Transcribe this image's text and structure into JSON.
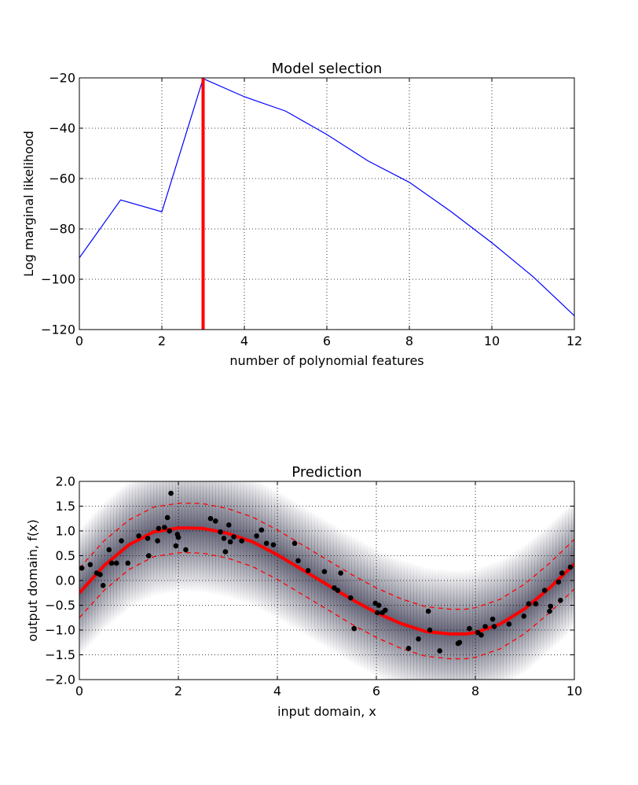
{
  "chart_data": [
    {
      "type": "line",
      "title": "Model selection",
      "xlabel": "number of polynomial features",
      "ylabel": "Log marginal likelihood",
      "xlim": [
        0,
        12
      ],
      "ylim": [
        -120,
        -20
      ],
      "xticks": [
        "0",
        "2",
        "4",
        "6",
        "8",
        "10",
        "12"
      ],
      "yticks": [
        "−120",
        "−100",
        "−80",
        "−60",
        "−40",
        "−20"
      ],
      "grid": true,
      "series": [
        {
          "color": "#0000ff",
          "x": [
            0,
            1,
            2,
            3,
            4,
            5,
            6,
            7,
            8,
            9,
            10,
            11,
            12
          ],
          "y": [
            -91.5,
            -68.5,
            -73.2,
            -20.3,
            -27.5,
            -33.2,
            -42.5,
            -53,
            -61.5,
            -73,
            -85.5,
            -99,
            -114.5
          ]
        }
      ],
      "vlines": [
        {
          "x": 3,
          "color": "#ff0000"
        }
      ]
    },
    {
      "type": "scatter",
      "title": "Prediction",
      "xlabel": "input domain, x",
      "ylabel": "output domain, f(x)",
      "xlim": [
        0,
        10
      ],
      "ylim": [
        -2.0,
        2.0
      ],
      "xticks": [
        "0",
        "2",
        "4",
        "6",
        "8",
        "10"
      ],
      "yticks": [
        "−2.0",
        "−1.5",
        "−1.0",
        "−0.5",
        "0.0",
        "0.5",
        "1.0",
        "1.5",
        "2.0"
      ],
      "grid": true,
      "mean_curve": {
        "color": "#ff0000",
        "x": [
          0,
          0.5,
          1,
          1.5,
          2,
          2.2,
          2.5,
          3,
          3.5,
          4,
          4.5,
          5,
          5.5,
          6,
          6.5,
          7,
          7.5,
          7.8,
          8,
          8.5,
          9,
          9.5,
          10
        ],
        "y": [
          -0.25,
          0.3,
          0.72,
          0.98,
          1.06,
          1.06,
          1.05,
          0.95,
          0.78,
          0.52,
          0.22,
          -0.08,
          -0.38,
          -0.65,
          -0.87,
          -1.03,
          -1.08,
          -1.08,
          -1.05,
          -0.88,
          -0.57,
          -0.15,
          0.33
        ]
      },
      "band_halfwidth": 0.5,
      "band_color": "#ff0000",
      "shade_color": "#5a5a6e",
      "points": {
        "color": "#000000",
        "x": [
          0.05,
          0.22,
          0.35,
          0.42,
          0.48,
          0.6,
          0.65,
          0.75,
          0.85,
          0.98,
          1.2,
          1.38,
          1.4,
          1.58,
          1.6,
          1.72,
          1.78,
          1.82,
          1.85,
          1.95,
          1.98,
          2.0,
          2.15,
          2.65,
          2.75,
          2.85,
          2.92,
          2.95,
          3.02,
          3.05,
          3.12,
          3.28,
          3.58,
          3.68,
          3.78,
          3.92,
          4.35,
          4.42,
          4.62,
          4.95,
          5.15,
          5.22,
          5.28,
          5.48,
          5.55,
          5.98,
          6.02,
          6.05,
          6.12,
          6.18,
          6.65,
          6.85,
          7.05,
          7.08,
          7.28,
          7.65,
          7.68,
          7.88,
          8.05,
          8.12,
          8.2,
          8.35,
          8.38,
          8.68,
          8.98,
          9.08,
          9.22,
          9.4,
          9.5,
          9.52,
          9.68,
          9.72,
          9.75,
          9.92
        ],
        "y": [
          0.25,
          0.32,
          0.15,
          0.12,
          -0.1,
          0.62,
          0.35,
          0.35,
          0.8,
          0.35,
          0.9,
          0.85,
          0.5,
          0.8,
          1.05,
          1.07,
          1.27,
          1.0,
          1.76,
          0.7,
          0.93,
          0.87,
          0.62,
          1.25,
          1.2,
          0.98,
          0.85,
          0.58,
          1.12,
          0.78,
          0.88,
          0.8,
          0.9,
          1.02,
          0.75,
          0.72,
          0.75,
          0.4,
          0.2,
          0.18,
          -0.15,
          -0.2,
          0.15,
          -0.35,
          -0.97,
          -0.46,
          -0.65,
          -0.5,
          -0.65,
          -0.6,
          -1.37,
          -1.18,
          -0.62,
          -1.0,
          -1.42,
          -1.27,
          -1.25,
          -0.97,
          -1.05,
          -1.1,
          -0.93,
          -0.78,
          -0.93,
          -0.88,
          -0.72,
          -0.47,
          -0.47,
          -0.2,
          -0.62,
          -0.52,
          -0.03,
          -0.4,
          0.15,
          0.27
        ]
      }
    }
  ]
}
